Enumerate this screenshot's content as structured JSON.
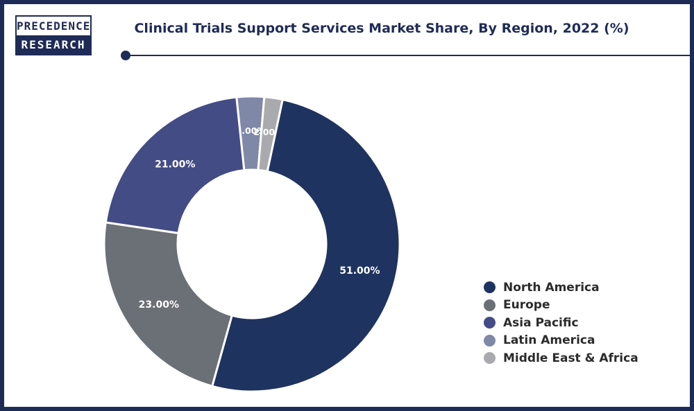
{
  "logo": {
    "line1": "PRECEDENCE",
    "line2": "RESEARCH"
  },
  "chart_data": {
    "type": "pie",
    "title": "Clinical Trials Support Services Market Share, By Region, 2022 (%)",
    "categories": [
      "North America",
      "Europe",
      "Asia Pacific",
      "Latin America",
      "Middle East & Africa"
    ],
    "values": [
      51,
      23,
      21,
      3,
      2
    ],
    "labels": [
      "51.00%",
      "23.00%",
      "21.00%",
      "3.00%",
      "2.00%"
    ],
    "colors": [
      "#1f3360",
      "#6b6f76",
      "#434c85",
      "#8088a8",
      "#a9aaad"
    ],
    "donut": true,
    "legend_position": "bottom-right"
  }
}
